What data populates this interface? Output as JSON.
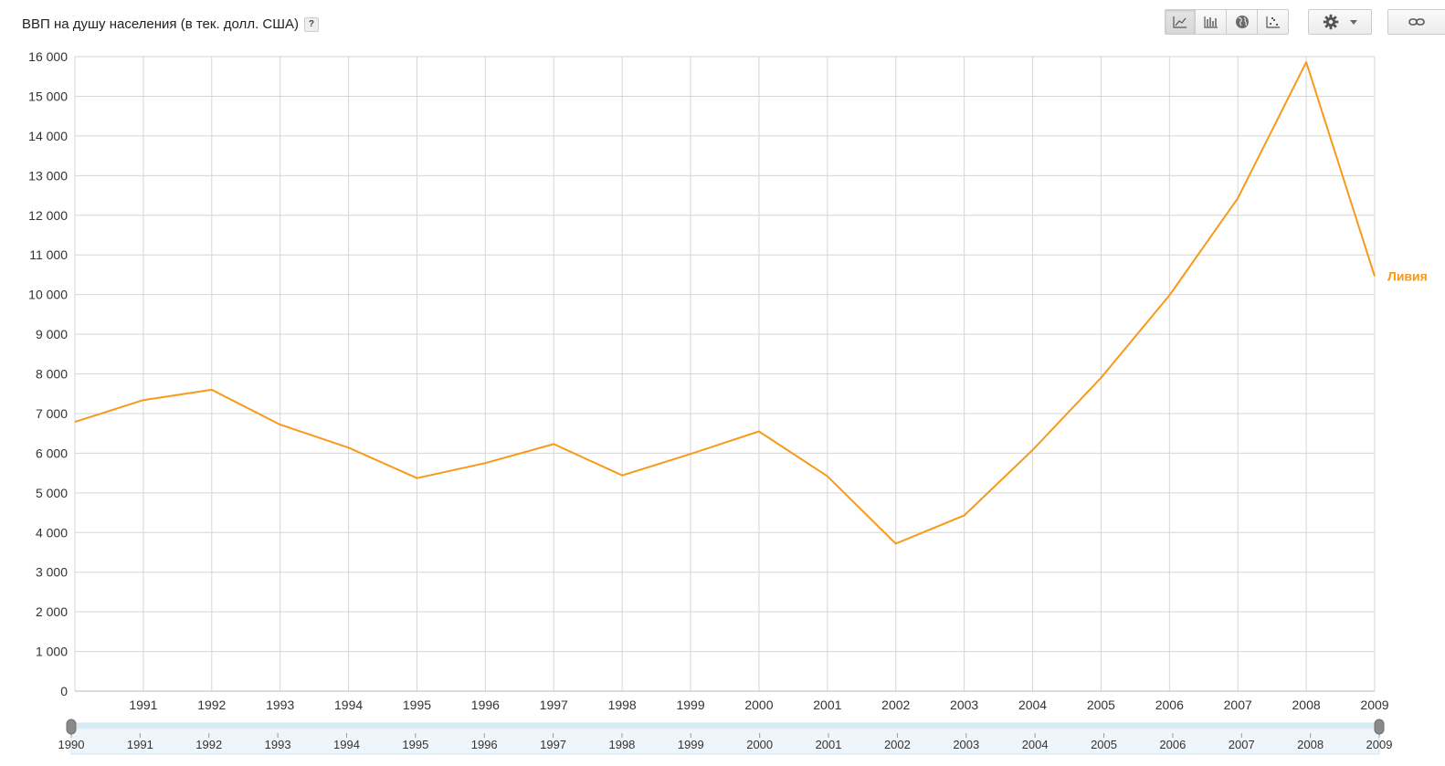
{
  "header": {
    "title": "ВВП на душу населения (в тек. долл. США)",
    "help_label": "?"
  },
  "toolbar": {
    "buttons": [
      {
        "icon": "line-chart-icon",
        "active": true
      },
      {
        "icon": "bar-chart-icon",
        "active": false
      },
      {
        "icon": "globe-icon",
        "active": false
      },
      {
        "icon": "scatter-chart-icon",
        "active": false
      }
    ],
    "settings_icon": "gear-icon",
    "settings_dropdown_icon": "caret-down-icon",
    "link_icon": "link-icon"
  },
  "chart_data": {
    "type": "line",
    "x": [
      1990,
      1991,
      1992,
      1993,
      1994,
      1995,
      1996,
      1997,
      1998,
      1999,
      2000,
      2001,
      2002,
      2003,
      2004,
      2005,
      2006,
      2007,
      2008,
      2009
    ],
    "series": [
      {
        "name": "Ливия",
        "color": "#f79a1a",
        "values": [
          6790,
          7340,
          7600,
          6720,
          6140,
          5370,
          5750,
          6230,
          5440,
          5980,
          6550,
          5420,
          3720,
          4430,
          6080,
          7900,
          9980,
          12430,
          15860,
          10460
        ]
      }
    ],
    "ylim": [
      0,
      16000
    ],
    "yticks": [
      "0",
      "1 000",
      "2 000",
      "3 000",
      "4 000",
      "5 000",
      "6 000",
      "7 000",
      "8 000",
      "9 000",
      "10 000",
      "11 000",
      "12 000",
      "13 000",
      "14 000",
      "15 000",
      "16 000"
    ],
    "xticks": [
      "1991",
      "1992",
      "1993",
      "1994",
      "1995",
      "1996",
      "1997",
      "1998",
      "1999",
      "2000",
      "2001",
      "2002",
      "2003",
      "2004",
      "2005",
      "2006",
      "2007",
      "2008",
      "2009"
    ],
    "grid": true,
    "range_slider": {
      "labels": [
        "1990",
        "1991",
        "1992",
        "1993",
        "1994",
        "1995",
        "1996",
        "1997",
        "1998",
        "1999",
        "2000",
        "2001",
        "2002",
        "2003",
        "2004",
        "2005",
        "2006",
        "2007",
        "2008",
        "2009"
      ],
      "start": 1990,
      "end": 2009
    }
  }
}
